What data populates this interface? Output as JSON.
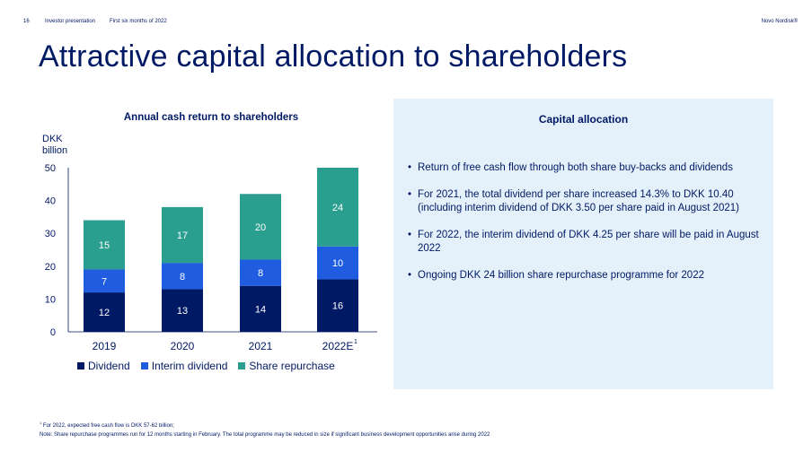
{
  "header": {
    "page_number": "16",
    "section": "Investor presentation",
    "period": "First six months of 2022",
    "brand": "Novo Nordisk®"
  },
  "title": "Attractive capital allocation to shareholders",
  "chart_data": {
    "type": "bar",
    "stacked": true,
    "title": "Annual cash return to shareholders",
    "ylabel": "DKK billion",
    "ylim": [
      0,
      50
    ],
    "yticks": [
      0,
      10,
      20,
      30,
      40,
      50
    ],
    "categories": [
      "2019",
      "2020",
      "2021",
      "2022E"
    ],
    "category_superscript": [
      "",
      "",
      "",
      "1"
    ],
    "series": [
      {
        "name": "Dividend",
        "color": "#001965",
        "values": [
          12,
          13,
          14,
          16
        ]
      },
      {
        "name": "Interim dividend",
        "color": "#1f5ce0",
        "values": [
          7,
          8,
          8,
          10
        ]
      },
      {
        "name": "Share repurchase",
        "color": "#2a9e8f",
        "values": [
          15,
          17,
          20,
          24
        ]
      }
    ],
    "legend_position": "bottom"
  },
  "panel": {
    "title": "Capital allocation",
    "bullets": [
      "Return of free cash flow through both share buy-backs and dividends",
      "For 2021, the total dividend per share increased 14.3% to DKK 10.40 (including interim dividend of DKK 3.50 per share paid in August 2021)",
      "For 2022, the interim dividend of DKK 4.25 per share will be paid in August 2022",
      "Ongoing DKK 24 billion share repurchase programme for 2022"
    ]
  },
  "footnotes": {
    "note1_marker": "1",
    "note1": " For 2022, expected free cash flow is DKK 57-62 billion;",
    "note2": "Note: Share repurchase programmes run for 12 months starting in February. The total programme may be reduced in size if significant business development opportunities arise during 2022"
  }
}
